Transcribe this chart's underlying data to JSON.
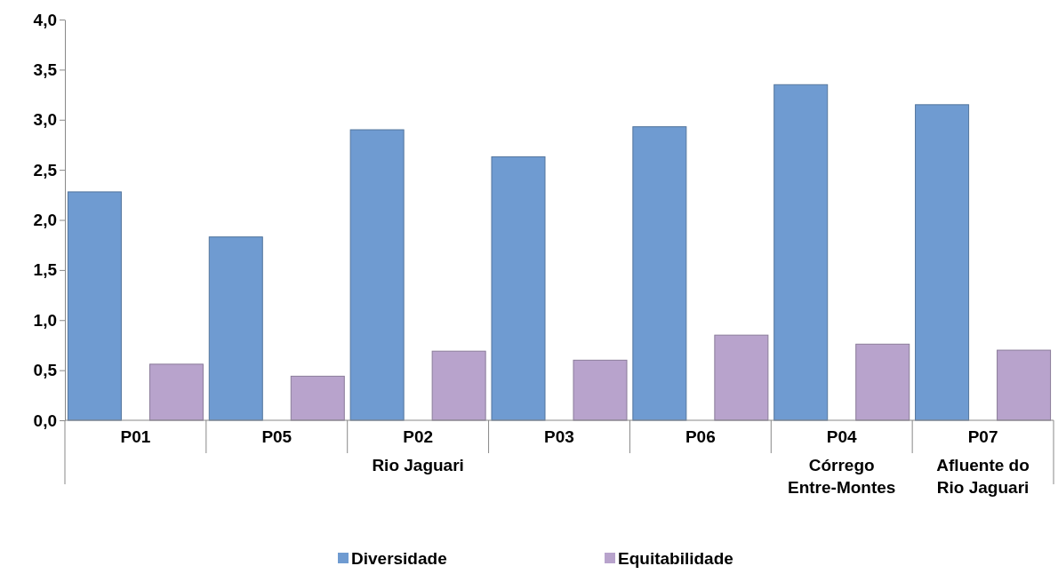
{
  "chart_data": {
    "type": "bar",
    "categories": [
      "P01",
      "P05",
      "P02",
      "P03",
      "P06",
      "P04",
      "P07"
    ],
    "series": [
      {
        "name": "Diversidade",
        "color": "#6f9bd1",
        "values": [
          2.28,
          1.83,
          2.9,
          2.63,
          2.93,
          3.35,
          3.15
        ]
      },
      {
        "name": "Equitabilidade",
        "color": "#b8a3cc",
        "values": [
          0.56,
          0.44,
          0.69,
          0.6,
          0.85,
          0.76,
          0.7
        ]
      }
    ],
    "ylim": [
      0,
      4
    ],
    "yticks": [
      {
        "value": 0,
        "label": "0,0"
      },
      {
        "value": 0.5,
        "label": "0,5"
      },
      {
        "value": 1,
        "label": "1,0"
      },
      {
        "value": 1.5,
        "label": "1,5"
      },
      {
        "value": 2,
        "label": "2,0"
      },
      {
        "value": 2.5,
        "label": "2,5"
      },
      {
        "value": 3,
        "label": "3,0"
      },
      {
        "value": 3.5,
        "label": "3,5"
      },
      {
        "value": 4,
        "label": "4,0"
      }
    ],
    "annotations": [
      "Rio Jaguari",
      "Córrego Entre-Montes",
      "Afluente do Rio Jaguari"
    ],
    "grid": false,
    "legend": "bottom"
  }
}
